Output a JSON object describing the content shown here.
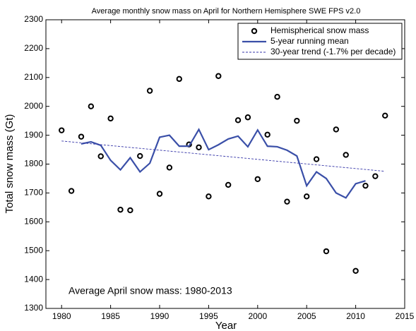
{
  "chart_data": {
    "type": "line",
    "title": "Average monthly snow mass on April for Northern Hemisphere SWE FPS v2.0",
    "x_label": "Year",
    "y_label": "Total snow mass (Gt)",
    "annotation": "Average April snow mass: 1980-2013",
    "xlim": [
      1978.4,
      2015
    ],
    "ylim": [
      1300,
      2300
    ],
    "xticks": [
      1980,
      1985,
      1990,
      1995,
      2000,
      2005,
      2010,
      2015
    ],
    "yticks": [
      1300,
      1400,
      1500,
      1600,
      1700,
      1800,
      1900,
      2000,
      2100,
      2200,
      2300
    ],
    "legend": "top-right",
    "series": [
      {
        "name": "Hemispherical snow mass",
        "style": "markers",
        "color": "#000000",
        "x": [
          1980,
          1981,
          1982,
          1983,
          1984,
          1985,
          1986,
          1987,
          1988,
          1989,
          1990,
          1991,
          1992,
          1993,
          1994,
          1995,
          1996,
          1997,
          1998,
          1999,
          2000,
          2001,
          2002,
          2003,
          2004,
          2005,
          2006,
          2007,
          2008,
          2009,
          2010,
          2011,
          2012,
          2013
        ],
        "values": [
          1917,
          1707,
          1895,
          2000,
          1827,
          1958,
          1642,
          1640,
          1828,
          2054,
          1697,
          1788,
          2095,
          1868,
          1858,
          1688,
          2105,
          1728,
          1952,
          1962,
          1748,
          1902,
          2033,
          1670,
          1950,
          1688,
          1817,
          1498,
          1920,
          1832,
          1430,
          1725,
          1758,
          1968
        ]
      },
      {
        "name": "5-year running mean",
        "style": "line",
        "color": "#3a4fa8",
        "x": [
          1982,
          1983,
          1984,
          1985,
          1986,
          1987,
          1988,
          1989,
          1990,
          1991,
          1992,
          1993,
          1994,
          1995,
          1996,
          1997,
          1998,
          1999,
          2000,
          2001,
          2002,
          2003,
          2004,
          2005,
          2006,
          2007,
          2008,
          2009,
          2010,
          2011
        ],
        "values": [
          1870,
          1877,
          1865,
          1813,
          1780,
          1822,
          1773,
          1803,
          1893,
          1900,
          1862,
          1862,
          1920,
          1850,
          1867,
          1887,
          1897,
          1860,
          1918,
          1862,
          1860,
          1848,
          1828,
          1725,
          1773,
          1750,
          1700,
          1683,
          1732,
          1742
        ]
      },
      {
        "name": "30-year trend (-1.7% per decade)",
        "style": "dashed",
        "color": "#3535a8",
        "x": [
          1980,
          2013
        ],
        "values": [
          1880,
          1775
        ]
      }
    ]
  }
}
